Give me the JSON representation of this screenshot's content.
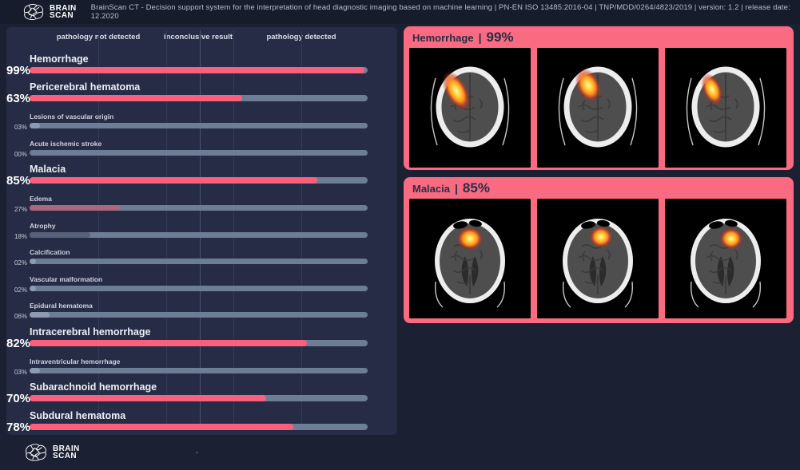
{
  "header": {
    "logo_line1": "BRAIN",
    "logo_line2": "SCAN",
    "title": "BrainScan CT - Decision support system for the interpretation of head diagnostic imaging based on machine learning | PN-EN ISO 13485:2016-04 | TNP/MDD/0264/4823/2019 | version: 1.2 | release date: 12.2020"
  },
  "panel": {
    "axis_labels": [
      "pathology not detected",
      "inconclusive result",
      "pathology detected"
    ],
    "rows": [
      {
        "label": "Hemorrhage",
        "percent": "99%",
        "value": 99,
        "major": true,
        "tone": "pink"
      },
      {
        "label": "Pericerebral hematoma",
        "percent": "63%",
        "value": 63,
        "major": true,
        "tone": "pink"
      },
      {
        "label": "Lesions of vascular origin",
        "percent": "03%",
        "value": 3,
        "major": false,
        "tone": "faint"
      },
      {
        "label": "Acute ischemic stroke",
        "percent": "00%",
        "value": 0,
        "major": false,
        "tone": "none"
      },
      {
        "label": "Malacia",
        "percent": "85%",
        "value": 85,
        "major": true,
        "tone": "pink"
      },
      {
        "label": "Edema",
        "percent": "27%",
        "value": 27,
        "major": false,
        "tone": "rose"
      },
      {
        "label": "Atrophy",
        "percent": "18%",
        "value": 18,
        "major": false,
        "tone": "muted"
      },
      {
        "label": "Calcification",
        "percent": "02%",
        "value": 2,
        "major": false,
        "tone": "faint"
      },
      {
        "label": "Vascular malformation",
        "percent": "02%",
        "value": 2,
        "major": false,
        "tone": "faint"
      },
      {
        "label": "Epidural hematoma",
        "percent": "06%",
        "value": 6,
        "major": false,
        "tone": "faint"
      },
      {
        "label": "Intracerebral hemorrhage",
        "percent": "82%",
        "value": 82,
        "major": true,
        "tone": "pink"
      },
      {
        "label": "Intraventricular hemorrhage",
        "percent": "03%",
        "value": 3,
        "major": false,
        "tone": "faint"
      },
      {
        "label": "Subarachnoid hemorrhage",
        "percent": "70%",
        "value": 70,
        "major": true,
        "tone": "pink"
      },
      {
        "label": "Subdural hematoma",
        "percent": "78%",
        "value": 78,
        "major": true,
        "tone": "pink"
      }
    ]
  },
  "chart_data": {
    "type": "bar",
    "orientation": "horizontal",
    "categories": [
      "Hemorrhage",
      "Pericerebral hematoma",
      "Lesions of vascular origin",
      "Acute ischemic stroke",
      "Malacia",
      "Edema",
      "Atrophy",
      "Calcification",
      "Vascular malformation",
      "Epidural hematoma",
      "Intracerebral hemorrhage",
      "Intraventricular hemorrhage",
      "Subarachnoid hemorrhage",
      "Subdural hematoma"
    ],
    "values": [
      99,
      63,
      3,
      0,
      85,
      27,
      18,
      2,
      2,
      6,
      82,
      3,
      70,
      78
    ],
    "xlim": [
      0,
      100
    ],
    "zone_labels": [
      "pathology not detected",
      "inconclusive result",
      "pathology detected"
    ]
  },
  "cards": [
    {
      "title": "Hemorrhage",
      "separator": "|",
      "percent": "99%"
    },
    {
      "title": "Malacia",
      "separator": "|",
      "percent": "85%"
    }
  ],
  "footer": {
    "logo_line1": "BRAIN",
    "logo_line2": "SCAN",
    "dash": "-"
  },
  "icons": [
    "brain-logo-icon",
    "ct-scan-image"
  ],
  "colors": {
    "page_bg": "#1b2033",
    "panel_bg": "#262c45",
    "accent_pink": "#fa6a80",
    "bar_pink": "#f8607c",
    "bar_rose": "#a9687e",
    "bar_muted": "#57627a",
    "bar_faint": "#8c9bb1",
    "bar_track": "#6d7d96",
    "card_text": "#272d47"
  }
}
